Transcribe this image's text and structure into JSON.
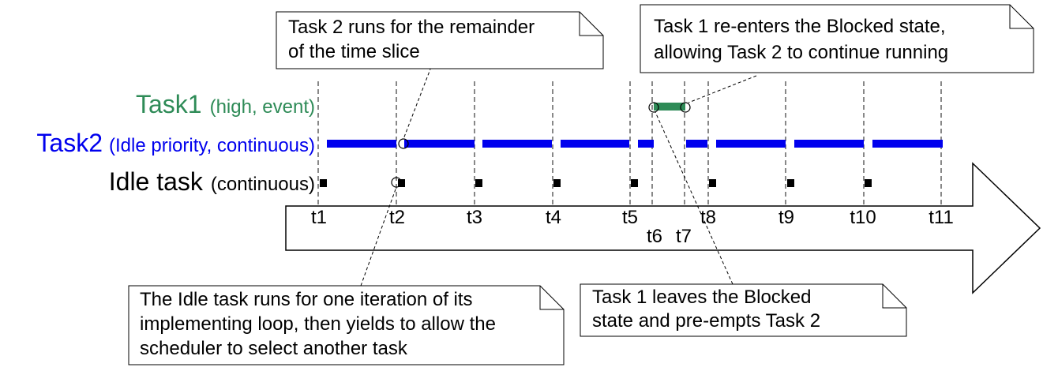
{
  "rows": {
    "task1": {
      "name": "Task1",
      "detail": "(high, event)",
      "color": "#2e8b57"
    },
    "task2": {
      "name": "Task2",
      "detail": "(Idle priority, continuous)",
      "color": "#0000ee"
    },
    "idle": {
      "name": "Idle task",
      "detail": "(continuous)",
      "color": "#000000"
    }
  },
  "ticks": [
    "t1",
    "t2",
    "t3",
    "t4",
    "t5",
    "t6",
    "t7",
    "t8",
    "t9",
    "t10",
    "t11"
  ],
  "notes": {
    "task2_remainder": [
      "Task 2 runs for the remainder",
      "of the time slice"
    ],
    "task1_reenters": [
      "Task 1 re-enters the Blocked state,",
      "allowing Task 2 to continue running"
    ],
    "idle_iteration": [
      "The Idle task runs for one iteration of its",
      "implementing loop, then yields to allow the",
      "scheduler to select another task"
    ],
    "task1_leaves": [
      "Task 1 leaves the Blocked",
      "state and pre-empts Task 2"
    ]
  }
}
